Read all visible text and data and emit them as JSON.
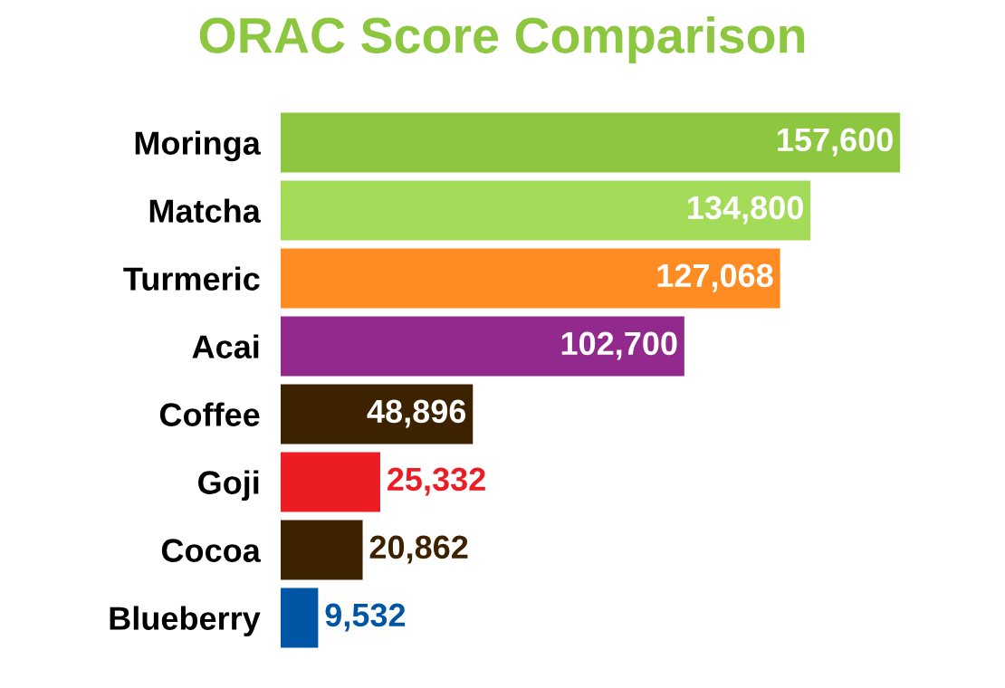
{
  "chart_data": {
    "type": "bar",
    "orientation": "horizontal",
    "title": "ORAC Score Comparison",
    "categories": [
      "Moringa",
      "Matcha",
      "Turmeric",
      "Acai",
      "Coffee",
      "Goji",
      "Cocoa",
      "Blueberry"
    ],
    "values": [
      157600,
      134800,
      127068,
      102700,
      48896,
      25332,
      20862,
      9532
    ],
    "colors": [
      "#8dc63f",
      "#a4dc5a",
      "#ff8c23",
      "#922a8e",
      "#3d2200",
      "#ec1c24",
      "#3d2200",
      "#0055a5"
    ],
    "value_labels": [
      "157,600",
      "134,800",
      "127,068",
      "102,700",
      "48,896",
      "25,332",
      "20,862",
      "9,532"
    ],
    "grid": false,
    "legend": false
  }
}
